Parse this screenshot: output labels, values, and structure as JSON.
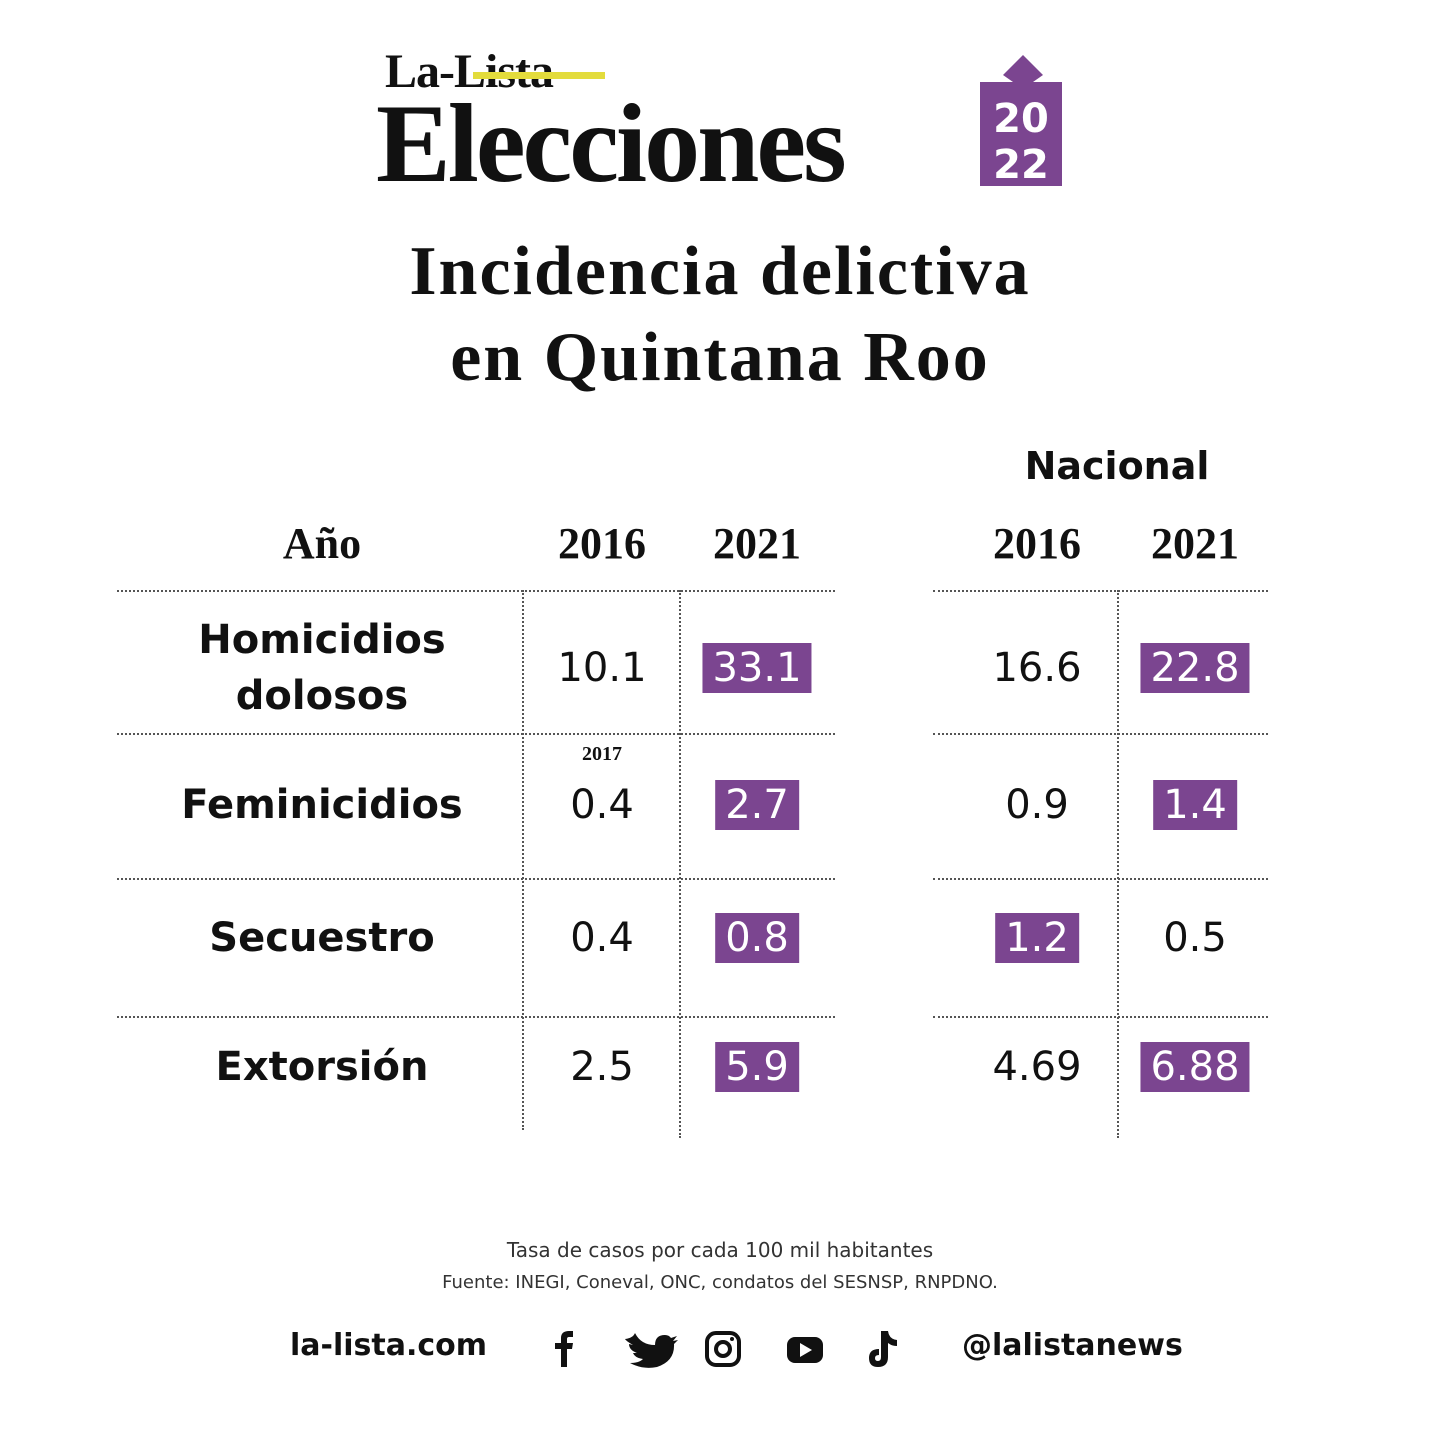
{
  "header": {
    "brand": "La-Lista",
    "title": "Elecciones",
    "year": [
      "20",
      "22"
    ]
  },
  "headline": [
    "Incidencia delictiva",
    "en Quintana Roo"
  ],
  "table": {
    "group": "Nacional",
    "columns": [
      "Año",
      "2016",
      "2021",
      "2016",
      "2021"
    ],
    "rows": [
      {
        "label": "Homicidios dolosos",
        "cells": [
          "10.1",
          "33.1",
          "16.6",
          "22.8"
        ],
        "highlight": [
          false,
          true,
          false,
          true
        ]
      },
      {
        "label": "Feminicidios",
        "cells": [
          "0.4",
          "2.7",
          "0.9",
          "1.4"
        ],
        "highlight": [
          false,
          true,
          false,
          true
        ],
        "note": "2017"
      },
      {
        "label": "Secuestro",
        "cells": [
          "0.4",
          "0.8",
          "1.2",
          "0.5"
        ],
        "highlight": [
          false,
          true,
          true,
          false
        ]
      },
      {
        "label": "Extorsión",
        "cells": [
          "2.5",
          "5.9",
          "4.69",
          "6.88"
        ],
        "highlight": [
          false,
          true,
          false,
          true
        ]
      }
    ],
    "highlight_color": "#7b4590"
  },
  "footer": {
    "note": "Tasa de casos por cada 100 mil habitantes",
    "source": "Fuente: INEGI, Coneval, ONC, condatos del  SESNSP, RNPDNO.",
    "site": "la-lista.com",
    "handle": "@lalistanews"
  }
}
